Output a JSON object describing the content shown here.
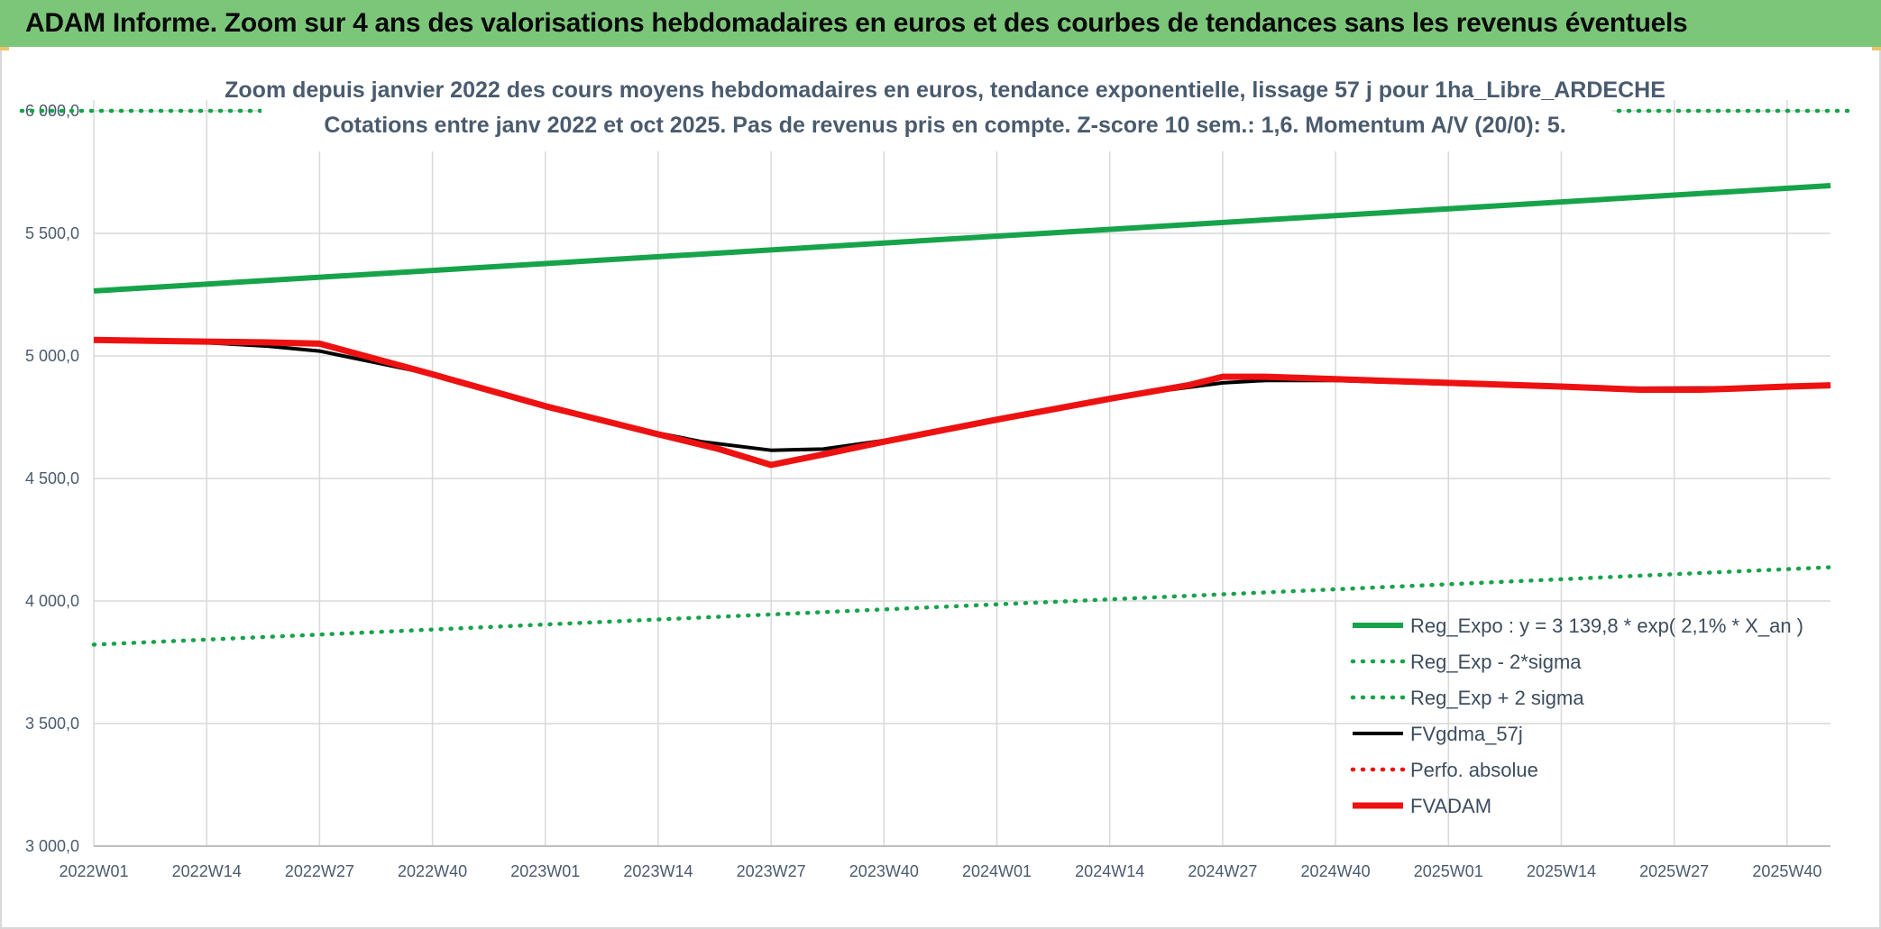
{
  "header": {
    "title": "ADAM Informe. Zoom sur 4 ans des valorisations hebdomadaires en euros et des courbes de tendances sans les revenus éventuels"
  },
  "colors": {
    "banner": "#7cc67a",
    "reg_green": "#17a34a",
    "red": "#ee1111",
    "black": "#000000",
    "grid": "#d9d9d9",
    "text": "#4a5b6e"
  },
  "chart_data": {
    "type": "line",
    "title_lines": [
      "Zoom depuis janvier 2022 des cours moyens hebdomadaires en euros, tendance exponentielle, lissage 57 j pour 1ha_Libre_ARDECHE",
      "Cotations entre janv 2022 et oct 2025. Pas de revenus pris en compte. Z-score 10 sem.: 1,6. Momentum A/V (20/0): 5."
    ],
    "ylim": [
      3000,
      6000
    ],
    "y_ticks": [
      {
        "value": 3000,
        "label": "3 000,0"
      },
      {
        "value": 3500,
        "label": "3 500,0"
      },
      {
        "value": 4000,
        "label": "4 000,0"
      },
      {
        "value": 4500,
        "label": "4 500,0"
      },
      {
        "value": 5000,
        "label": "5 000,0"
      },
      {
        "value": 5500,
        "label": "5 500,0"
      },
      {
        "value": 6000,
        "label": "6 000,0"
      }
    ],
    "x_range": [
      0,
      200
    ],
    "x_ticks": [
      {
        "value": 0,
        "label": "2022W01"
      },
      {
        "value": 13,
        "label": "2022W14"
      },
      {
        "value": 26,
        "label": "2022W27"
      },
      {
        "value": 39,
        "label": "2022W40"
      },
      {
        "value": 52,
        "label": "2023W01"
      },
      {
        "value": 65,
        "label": "2023W14"
      },
      {
        "value": 78,
        "label": "2023W27"
      },
      {
        "value": 91,
        "label": "2023W40"
      },
      {
        "value": 104,
        "label": "2024W01"
      },
      {
        "value": 117,
        "label": "2024W14"
      },
      {
        "value": 130,
        "label": "2024W27"
      },
      {
        "value": 143,
        "label": "2024W40"
      },
      {
        "value": 156,
        "label": "2025W01"
      },
      {
        "value": 169,
        "label": "2025W14"
      },
      {
        "value": 182,
        "label": "2025W27"
      },
      {
        "value": 195,
        "label": "2025W40"
      }
    ],
    "series": [
      {
        "name": "Reg_Expo : y = 3 139,8 * exp( 2,1% *  X_an )",
        "style": "solid-thick",
        "color": "#17a34a",
        "points": [
          [
            0,
            5265
          ],
          [
            200,
            5695
          ]
        ]
      },
      {
        "name": "Reg_Exp - 2*sigma",
        "style": "dotted",
        "color": "#17a34a",
        "points": [
          [
            0,
            3822
          ],
          [
            200,
            4138
          ]
        ]
      },
      {
        "name": "Reg_Exp + 2 sigma",
        "style": "dotted",
        "color": "#17a34a",
        "points": [
          [
            -10,
            6000
          ],
          [
            19,
            6000
          ],
          [
            176,
            6000
          ],
          [
            210,
            6000
          ]
        ]
      },
      {
        "name": "FVgdma_57j",
        "style": "solid",
        "color": "#000000",
        "points": [
          [
            0,
            5065
          ],
          [
            10,
            5060
          ],
          [
            20,
            5040
          ],
          [
            26,
            5020
          ],
          [
            39,
            4925
          ],
          [
            52,
            4790
          ],
          [
            60,
            4720
          ],
          [
            70,
            4650
          ],
          [
            78,
            4615
          ],
          [
            84,
            4620
          ],
          [
            91,
            4655
          ],
          [
            104,
            4735
          ],
          [
            117,
            4830
          ],
          [
            130,
            4890
          ],
          [
            135,
            4900
          ],
          [
            143,
            4900
          ],
          [
            156,
            4885
          ],
          [
            169,
            4872
          ],
          [
            178,
            4868
          ],
          [
            189,
            4870
          ],
          [
            200,
            4880
          ]
        ]
      },
      {
        "name": "Perfo. absolue",
        "style": "dotted",
        "color": "#ee1111",
        "points": []
      },
      {
        "name": "FVADAM",
        "style": "solid-thick",
        "color": "#ee1111",
        "points": [
          [
            0,
            5065
          ],
          [
            10,
            5060
          ],
          [
            20,
            5055
          ],
          [
            26,
            5050
          ],
          [
            39,
            4925
          ],
          [
            52,
            4795
          ],
          [
            65,
            4680
          ],
          [
            72,
            4620
          ],
          [
            78,
            4555
          ],
          [
            84,
            4598
          ],
          [
            91,
            4650
          ],
          [
            104,
            4740
          ],
          [
            117,
            4825
          ],
          [
            126,
            4880
          ],
          [
            130,
            4915
          ],
          [
            135,
            4915
          ],
          [
            143,
            4905
          ],
          [
            156,
            4890
          ],
          [
            169,
            4875
          ],
          [
            178,
            4862
          ],
          [
            185,
            4862
          ],
          [
            189,
            4867
          ],
          [
            195,
            4875
          ],
          [
            200,
            4880
          ]
        ]
      }
    ],
    "legend": {
      "position": "bottom-right",
      "entries": [
        "Reg_Expo : y = 3 139,8 * exp( 2,1% *  X_an )",
        "Reg_Exp - 2*sigma",
        "Reg_Exp + 2 sigma",
        "FVgdma_57j",
        "Perfo. absolue",
        "FVADAM"
      ]
    },
    "grid": true
  }
}
